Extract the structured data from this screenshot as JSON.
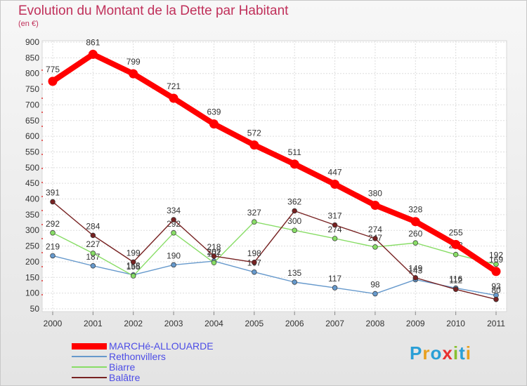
{
  "chart_data": {
    "type": "line",
    "title": "Evolution du Montant de la Dette par Habitant",
    "subtitle": "(en €)",
    "x": [
      "2000",
      "2001",
      "2002",
      "2003",
      "2004",
      "2005",
      "2006",
      "2007",
      "2008",
      "2009",
      "2010",
      "2011"
    ],
    "ylim": [
      50,
      900
    ],
    "yticks": [
      50,
      100,
      150,
      200,
      250,
      300,
      350,
      400,
      450,
      500,
      550,
      600,
      650,
      700,
      750,
      800,
      850,
      900
    ],
    "grid": true,
    "legend_position": "bottom-left",
    "series": [
      {
        "name": "MARCHé-ALLOUARDE",
        "color": "#ff0000",
        "values": [
          775,
          861,
          799,
          721,
          639,
          572,
          511,
          447,
          380,
          328,
          255,
          169
        ],
        "labels": [
          "775",
          "861",
          "799",
          "721",
          "639",
          "572",
          "511",
          "447",
          "380",
          "328",
          "255",
          "169"
        ]
      },
      {
        "name": "Rethonvillers",
        "color": "#6699cc",
        "values": [
          219,
          187,
          158,
          190,
          202,
          167,
          135,
          117,
          98,
          143,
          116,
          93
        ],
        "labels": [
          "219",
          "187",
          "158",
          "190",
          "202",
          "167",
          "135",
          "117",
          "98",
          "143",
          "116",
          "93"
        ]
      },
      {
        "name": "Biarre",
        "color": "#88dd66",
        "values": [
          292,
          227,
          155,
          292,
          197,
          327,
          300,
          274,
          247,
          260,
          223,
          192
        ],
        "labels": [
          "292",
          "227",
          "155",
          "292",
          "197",
          "327",
          "300",
          "274",
          "247",
          "260",
          "223",
          "192"
        ]
      },
      {
        "name": "Balâtre",
        "color": "#772222",
        "values": [
          391,
          284,
          199,
          334,
          218,
          198,
          362,
          317,
          274,
          149,
          112,
          80
        ],
        "labels": [
          "391",
          "284",
          "199",
          "334",
          "218",
          "198",
          "362",
          "317",
          "274",
          "149",
          "112",
          "80"
        ]
      }
    ]
  },
  "logo": {
    "text": "Proxiti",
    "colors": [
      "#2a9fd6",
      "#e8a020",
      "#2a9fd6",
      "#e83030",
      "#88c030",
      "#2a9fd6",
      "#e8a020"
    ]
  }
}
